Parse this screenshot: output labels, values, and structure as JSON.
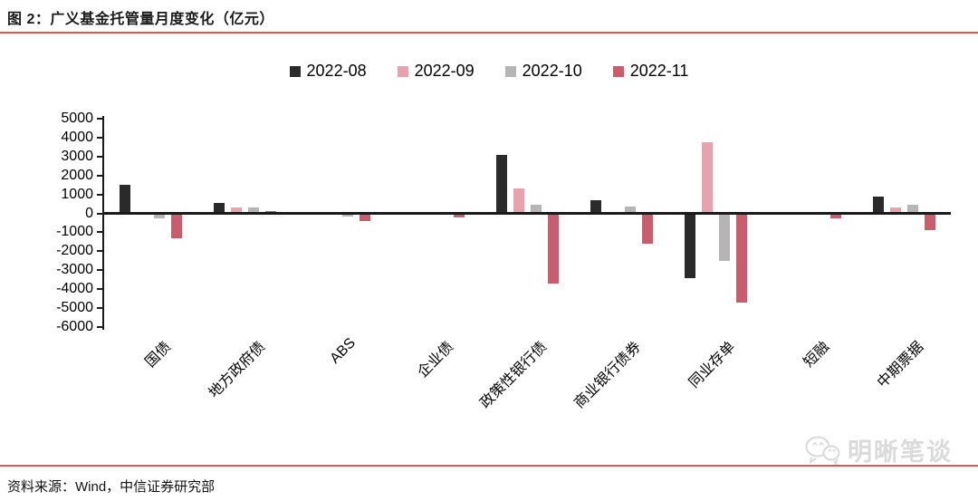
{
  "figure": {
    "title": "图 2：广义基金托管量月度变化（亿元）",
    "source": "资料来源：Wind，中信证券研究部",
    "watermark": "明晰笔谈",
    "accent_color": "#e4554b"
  },
  "chart_data": {
    "type": "bar",
    "title": "广义基金托管量月度变化（亿元）",
    "categories": [
      "国债",
      "地方政府债",
      "ABS",
      "企业债",
      "政策性银行债",
      "商业银行债券",
      "同业存单",
      "短融",
      "中期票据"
    ],
    "series": [
      {
        "name": "2022-08",
        "color": "#2a2a2a",
        "values": [
          1500,
          550,
          0,
          0,
          3100,
          700,
          -3400,
          0,
          880
        ]
      },
      {
        "name": "2022-09",
        "color": "#e9a2ac",
        "values": [
          0,
          300,
          0,
          0,
          1300,
          0,
          3750,
          0,
          300
        ]
      },
      {
        "name": "2022-10",
        "color": "#b5b5b5",
        "values": [
          -250,
          330,
          -150,
          0,
          480,
          340,
          -2500,
          0,
          440
        ]
      },
      {
        "name": "2022-11",
        "color": "#cb5c6c",
        "values": [
          -1300,
          120,
          -400,
          -200,
          -3700,
          -1600,
          -4700,
          -280,
          -900
        ]
      }
    ],
    "xlabel": "",
    "ylabel": "",
    "ylim": [
      -6000,
      5000
    ],
    "ytick_step": 1000,
    "legend_position": "top",
    "grid": false
  }
}
